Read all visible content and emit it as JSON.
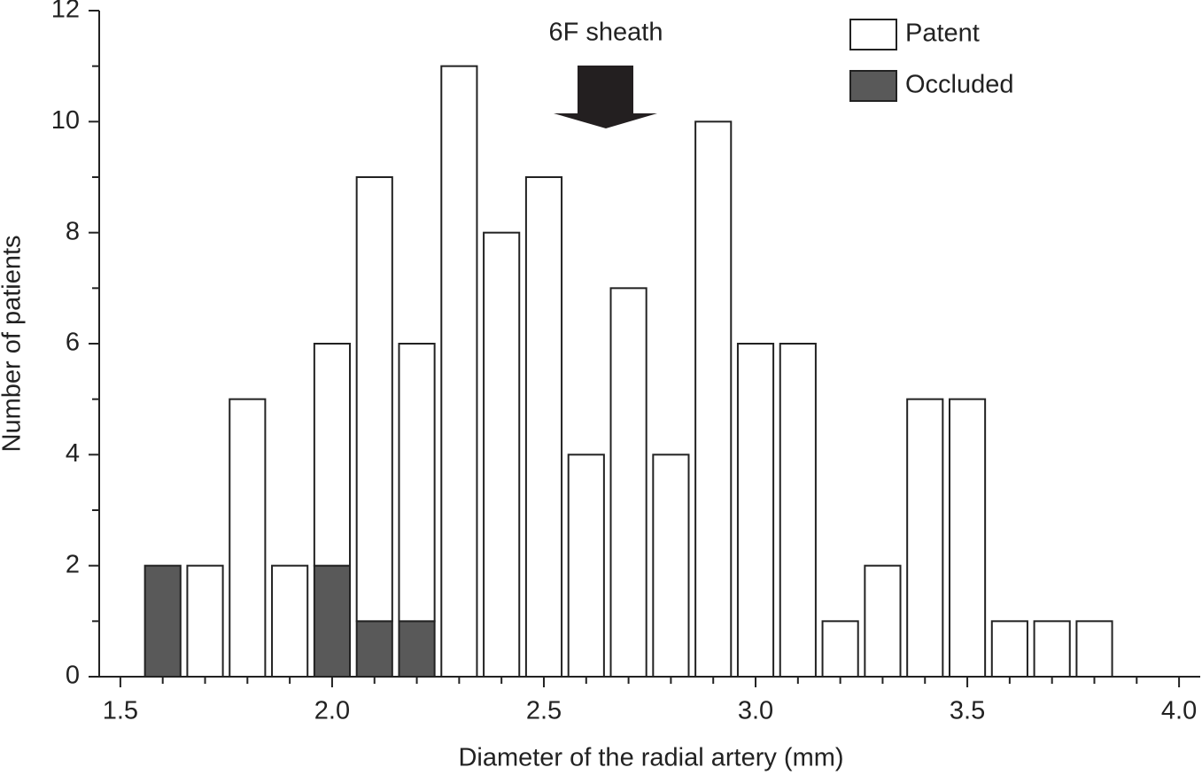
{
  "chart_data": {
    "type": "bar",
    "stacked": true,
    "xlabel": "Diameter of the radial artery (mm)",
    "ylabel": "Number of patients",
    "annotation": "6F sheath",
    "x": [
      1.6,
      1.7,
      1.8,
      1.9,
      2.0,
      2.1,
      2.2,
      2.3,
      2.4,
      2.5,
      2.6,
      2.7,
      2.8,
      2.9,
      3.0,
      3.1,
      3.2,
      3.3,
      3.4,
      3.5,
      3.6,
      3.7,
      3.8
    ],
    "series": [
      {
        "name": "Occluded",
        "color": "#595959",
        "values": [
          2,
          0,
          0,
          0,
          2,
          1,
          1,
          0,
          0,
          0,
          0,
          0,
          0,
          0,
          0,
          0,
          0,
          0,
          0,
          0,
          0,
          0,
          0
        ]
      },
      {
        "name": "Patent",
        "color": "#ffffff",
        "values": [
          0,
          2,
          5,
          2,
          4,
          8,
          5,
          11,
          8,
          9,
          4,
          7,
          4,
          10,
          6,
          6,
          1,
          2,
          5,
          5,
          1,
          1,
          1
        ]
      }
    ],
    "legend_order": [
      "Patent",
      "Occluded"
    ],
    "legend": "upper right",
    "xlim": [
      1.45,
      4.05
    ],
    "ylim": [
      0,
      12
    ],
    "xticks": [
      1.5,
      {
        "value": 2,
        "label": "2.0"
      },
      2.5,
      {
        "value": 3,
        "label": "3.0"
      },
      3.5,
      {
        "value": 4,
        "label": "4.0"
      }
    ],
    "xminorticks": [
      1.6,
      1.7,
      1.8,
      1.9,
      2.1,
      2.2,
      2.3,
      2.4,
      2.6,
      2.7,
      2.8,
      2.9,
      3.1,
      3.2,
      3.3,
      3.4,
      3.6,
      3.7,
      3.8,
      3.9
    ],
    "yticks": [
      0,
      2,
      4,
      6,
      8,
      10,
      12
    ],
    "yminorticks": [
      1,
      3,
      5,
      7,
      9,
      11
    ]
  }
}
